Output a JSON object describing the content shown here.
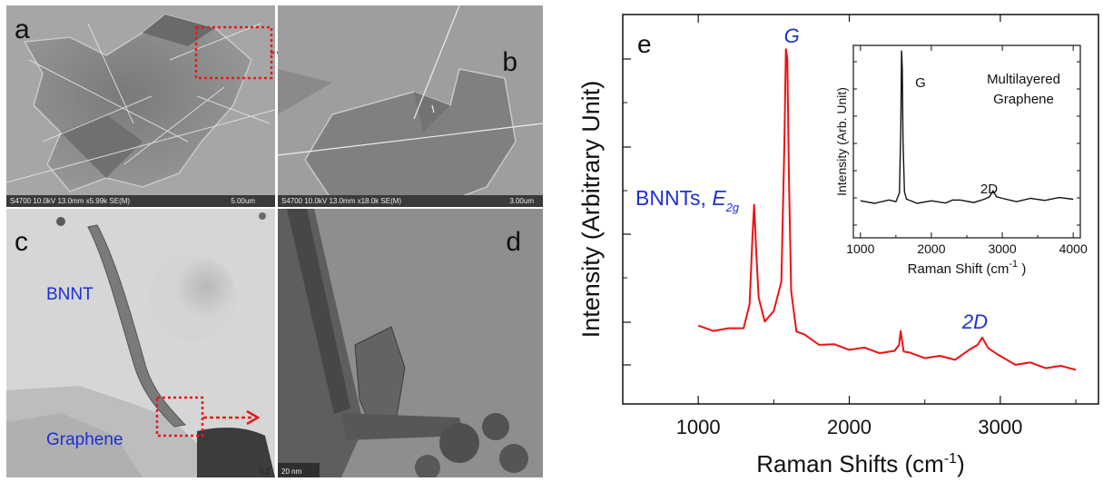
{
  "panels": {
    "a": {
      "label": "a",
      "footer": "S4700 10.0kV 13.0mm x5.99k SE(M)",
      "scale": "5.00um"
    },
    "b": {
      "label": "b",
      "footer": "S4700 10.0kV 13.0mm x18.0k SE(M)",
      "scale": "3.00um"
    },
    "c": {
      "label": "c",
      "annot_top": "BNNT",
      "annot_bottom": "Graphene",
      "scale": "0.2"
    },
    "d": {
      "label": "d",
      "scale": "20 nm"
    }
  },
  "colors": {
    "annotation_blue": "#1d2fd6",
    "box_red": "#e51b1b",
    "spectrum_red": "#ee1111"
  },
  "chart_data": [
    {
      "type": "line",
      "panel_label": "e",
      "xlabel": "Raman Shifts (cm",
      "xlabel_sup": "-1",
      "xlabel_end": ")",
      "ylabel": "Intensity (Arbitrary Unit)",
      "xlim": [
        500,
        3650
      ],
      "xticks": [
        1000,
        2000,
        3000
      ],
      "ylim": [
        0,
        1
      ],
      "y_tick_labels": false,
      "series": [
        {
          "color": "#ee1111",
          "x": [
            1000,
            1100,
            1200,
            1300,
            1340,
            1360,
            1370,
            1385,
            1400,
            1440,
            1500,
            1550,
            1570,
            1580,
            1590,
            1600,
            1615,
            1650,
            1700,
            1800,
            1900,
            2000,
            2100,
            2200,
            2300,
            2330,
            2340,
            2360,
            2400,
            2500,
            2600,
            2700,
            2800,
            2850,
            2880,
            2920,
            2980,
            3100,
            3200,
            3300,
            3400,
            3500
          ],
          "y": [
            0.156,
            0.152,
            0.148,
            0.16,
            0.22,
            0.45,
            0.52,
            0.38,
            0.24,
            0.18,
            0.2,
            0.3,
            0.7,
            1.0,
            0.96,
            0.62,
            0.26,
            0.15,
            0.13,
            0.11,
            0.1,
            0.095,
            0.09,
            0.085,
            0.08,
            0.11,
            0.14,
            0.09,
            0.075,
            0.07,
            0.065,
            0.065,
            0.085,
            0.11,
            0.12,
            0.1,
            0.07,
            0.05,
            0.045,
            0.04,
            0.035,
            0.035
          ]
        }
      ],
      "annotations": {
        "G": "G",
        "BNNT_prefix": "BNNTs, ",
        "BNNT_E": "E",
        "BNNT_sub": "2g",
        "D2": "2D"
      }
    },
    {
      "type": "line",
      "inset": true,
      "xlabel": "Raman Shift (cm",
      "xlabel_sup": "-1",
      "xlabel_end": " )",
      "ylabel": "Intensity (Arb. Unit)",
      "xlim": [
        900,
        4100
      ],
      "xticks": [
        1000,
        2000,
        3000,
        4000
      ],
      "ylim": [
        0,
        1
      ],
      "series": [
        {
          "color": "#111111",
          "x": [
            1000,
            1200,
            1400,
            1500,
            1550,
            1570,
            1580,
            1590,
            1600,
            1620,
            1650,
            1800,
            2000,
            2200,
            2300,
            2350,
            2400,
            2600,
            2750,
            2820,
            2870,
            2920,
            3000,
            3200,
            3400,
            3600,
            3800,
            4000
          ],
          "y": [
            0.08,
            0.08,
            0.085,
            0.09,
            0.13,
            0.55,
            1.0,
            0.9,
            0.45,
            0.15,
            0.09,
            0.08,
            0.08,
            0.082,
            0.085,
            0.1,
            0.085,
            0.085,
            0.09,
            0.12,
            0.14,
            0.12,
            0.095,
            0.09,
            0.095,
            0.098,
            0.1,
            0.105
          ]
        }
      ],
      "annotations": {
        "G": "G",
        "D2": "2D",
        "title_line1": "Multilayered",
        "title_line2": "Graphene"
      }
    }
  ]
}
